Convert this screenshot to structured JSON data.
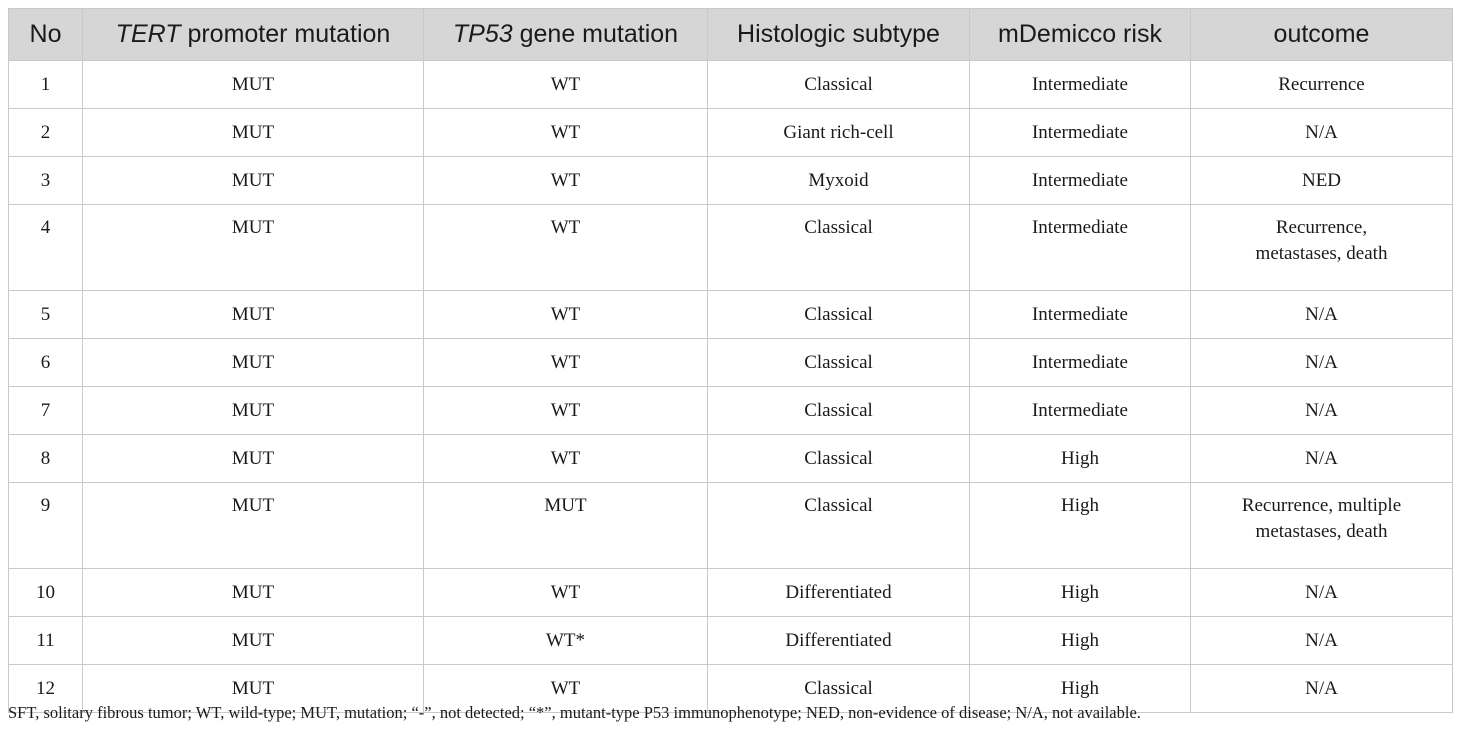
{
  "table": {
    "headers": [
      {
        "pre": "No",
        "ital": "",
        "post": ""
      },
      {
        "pre": "",
        "ital": "TERT",
        "post": " promoter mutation"
      },
      {
        "pre": "",
        "ital": "TP53",
        "post": " gene mutation"
      },
      {
        "pre": "Histologic subtype",
        "ital": "",
        "post": ""
      },
      {
        "pre": "mDemicco risk",
        "ital": "",
        "post": ""
      },
      {
        "pre": "outcome",
        "ital": "",
        "post": ""
      }
    ],
    "rows": [
      {
        "no": "1",
        "tert": "MUT",
        "tp53": "WT",
        "subtype": "Classical",
        "risk": "Intermediate",
        "outcome": "Recurrence"
      },
      {
        "no": "2",
        "tert": "MUT",
        "tp53": "WT",
        "subtype": "Giant rich-cell",
        "risk": "Intermediate",
        "outcome": "N/A"
      },
      {
        "no": "3",
        "tert": "MUT",
        "tp53": "WT",
        "subtype": "Myxoid",
        "risk": "Intermediate",
        "outcome": "NED"
      },
      {
        "no": "4",
        "tert": "MUT",
        "tp53": "WT",
        "subtype": "Classical",
        "risk": "Intermediate",
        "outcome": "Recurrence,\nmetastases, death"
      },
      {
        "no": "5",
        "tert": "MUT",
        "tp53": "WT",
        "subtype": "Classical",
        "risk": "Intermediate",
        "outcome": "N/A"
      },
      {
        "no": "6",
        "tert": "MUT",
        "tp53": "WT",
        "subtype": "Classical",
        "risk": "Intermediate",
        "outcome": "N/A"
      },
      {
        "no": "7",
        "tert": "MUT",
        "tp53": "WT",
        "subtype": "Classical",
        "risk": "Intermediate",
        "outcome": "N/A"
      },
      {
        "no": "8",
        "tert": "MUT",
        "tp53": "WT",
        "subtype": "Classical",
        "risk": "High",
        "outcome": "N/A"
      },
      {
        "no": "9",
        "tert": "MUT",
        "tp53": "MUT",
        "subtype": "Classical",
        "risk": "High",
        "outcome": "Recurrence, multiple\nmetastases, death"
      },
      {
        "no": "10",
        "tert": "MUT",
        "tp53": "WT",
        "subtype": "Differentiated",
        "risk": "High",
        "outcome": "N/A"
      },
      {
        "no": "11",
        "tert": "MUT",
        "tp53": "WT*",
        "subtype": "Differentiated",
        "risk": "High",
        "outcome": "N/A"
      },
      {
        "no": "12",
        "tert": "MUT",
        "tp53": "WT",
        "subtype": "Classical",
        "risk": "High",
        "outcome": "N/A"
      }
    ]
  },
  "footnote": "SFT, solitary fibrous tumor; WT, wild-type; MUT, mutation; “-”, not detected; “*”, mutant-type P53 immunophenotype; NED, non-evidence of disease; N/A, not available."
}
